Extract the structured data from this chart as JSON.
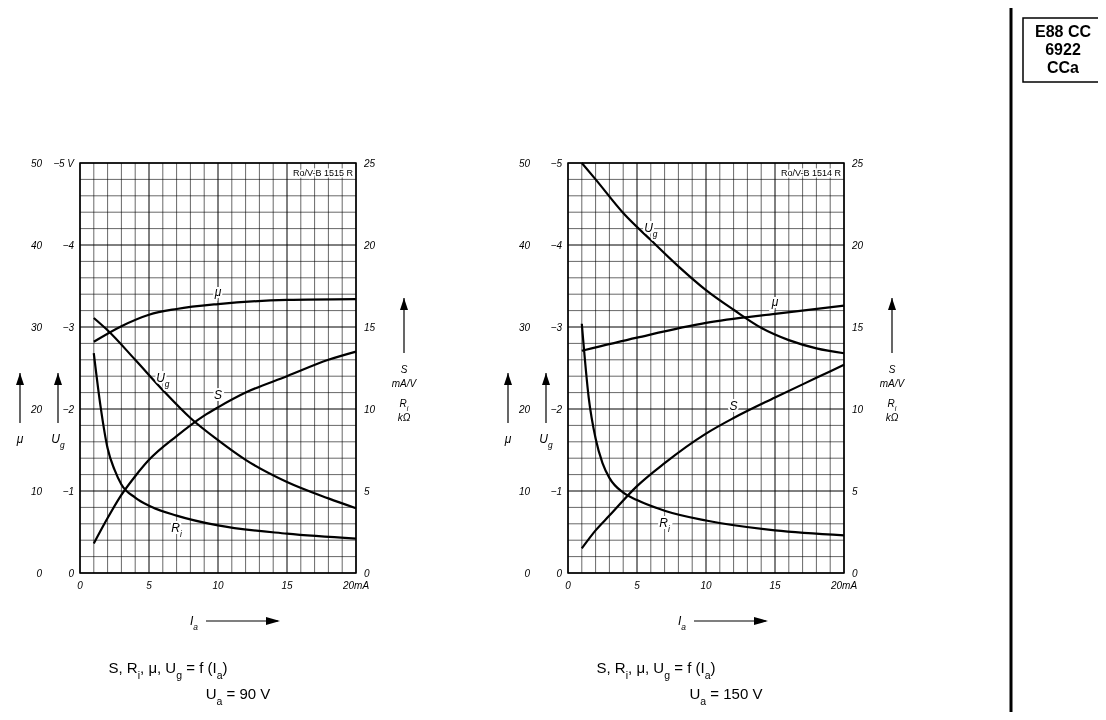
{
  "chart_data": [
    {
      "type": "line",
      "xlabel": "I$_{a}$",
      "ylabel": "μ",
      "y2label": "U$_{g}$",
      "y3label": "S\nmA/V\nR$_{i}$\nkΩ",
      "xlim": [
        0,
        20
      ],
      "ylim": [
        0,
        50
      ],
      "y2lim": [
        0,
        -5
      ],
      "y3lim": [
        0,
        25
      ],
      "xticks": [
        0,
        {
          "value": 1,
          "label": null
        },
        {
          "value": 2,
          "label": null
        },
        {
          "value": 3,
          "label": null
        },
        {
          "value": 4,
          "label": null
        },
        5,
        {
          "value": 6,
          "label": null
        },
        {
          "value": 7,
          "label": null
        },
        {
          "value": 8,
          "label": null
        },
        {
          "value": 9,
          "label": null
        },
        10,
        {
          "value": 11,
          "label": null
        },
        {
          "value": 12,
          "label": null
        },
        {
          "value": 13,
          "label": null
        },
        {
          "value": 14,
          "label": null
        },
        15,
        {
          "value": 16,
          "label": null
        },
        {
          "value": 17,
          "label": null
        },
        {
          "value": 18,
          "label": null
        },
        {
          "value": 19,
          "label": null
        },
        {
          "value": 20,
          "label": "20mA"
        }
      ],
      "yticks": [
        0,
        10,
        20,
        30,
        40,
        50
      ],
      "y2ticks": [
        0,
        {
          "value": -1,
          "label": "−1"
        },
        {
          "value": -2,
          "label": "−2"
        },
        {
          "value": -3,
          "label": "−3"
        },
        {
          "value": -4,
          "label": "−4"
        },
        {
          "value": -5,
          "label": "−5 V"
        }
      ],
      "y3ticks": [
        0,
        {
          "value": 1,
          "label": null
        },
        {
          "value": 2,
          "label": null
        },
        {
          "value": 3,
          "label": null
        },
        {
          "value": 4,
          "label": null
        },
        5,
        {
          "value": 6,
          "label": null
        },
        {
          "value": 7,
          "label": null
        },
        {
          "value": 8,
          "label": null
        },
        {
          "value": 9,
          "label": null
        },
        10,
        {
          "value": 11,
          "label": null
        },
        {
          "value": 12,
          "label": null
        },
        {
          "value": 13,
          "label": null
        },
        {
          "value": 14,
          "label": null
        },
        15,
        {
          "value": 16,
          "label": null
        },
        {
          "value": 17,
          "label": null
        },
        {
          "value": 18,
          "label": null
        },
        {
          "value": 19,
          "label": null
        },
        20,
        {
          "value": 21,
          "label": null
        },
        {
          "value": 22,
          "label": null
        },
        {
          "value": 23,
          "label": null
        },
        {
          "value": 24,
          "label": null
        },
        25
      ],
      "grid": true,
      "series": [
        {
          "name": "μ",
          "color": "#000000",
          "x": [
            1,
            3,
            5,
            7,
            10,
            15,
            20
          ],
          "values": [
            28.2,
            30.1,
            31.5,
            32.2,
            32.8,
            33.3,
            33.4
          ]
        },
        {
          "name": "U$_{g}$",
          "color": "#000000",
          "axis": "y2",
          "x": [
            1,
            2,
            4,
            6,
            8,
            10,
            12,
            15,
            18,
            20
          ],
          "values": [
            -3.11,
            -2.96,
            -2.6,
            -2.23,
            -1.89,
            -1.62,
            -1.38,
            -1.11,
            -0.91,
            -0.79
          ]
        },
        {
          "name": "S",
          "color": "#000000",
          "axis": "y3",
          "x": [
            1,
            2,
            3,
            4,
            5,
            7,
            9,
            10,
            12,
            15,
            18,
            20
          ],
          "values": [
            1.8,
            3.35,
            4.76,
            5.9,
            6.9,
            8.35,
            9.6,
            10.1,
            11,
            12,
            13,
            13.5
          ]
        },
        {
          "name": "R$_{i}$",
          "color": "#000000",
          "axis": "y3",
          "x": [
            1,
            1.5,
            2,
            2.5,
            3,
            4,
            5,
            7,
            10,
            15,
            20
          ],
          "values": [
            13.4,
            10.1,
            7.6,
            6.3,
            5.4,
            4.6,
            4.1,
            3.5,
            2.9,
            2.4,
            2.1
          ]
        }
      ],
      "annotations": [
        "S, R$_{i}$, μ, U$_{g}$ = f (I$_{a}$)",
        "U$_{a}$ = 90 V",
        "Ro/V-B 1515 R",
        "E88 CC",
        "6922",
        "CCa"
      ]
    },
    {
      "type": "line",
      "xlabel": "I$_{a}$",
      "ylabel": "μ",
      "y2label": "U$_{g}$",
      "y3label": "S\nmA/V\nR$_{i}$\nkΩ",
      "xlim": [
        0,
        20
      ],
      "ylim": [
        0,
        50
      ],
      "y2lim": [
        0,
        -5
      ],
      "y3lim": [
        0,
        25
      ],
      "xticks": [
        0,
        {
          "value": 1,
          "label": null
        },
        {
          "value": 2,
          "label": null
        },
        {
          "value": 3,
          "label": null
        },
        {
          "value": 4,
          "label": null
        },
        5,
        {
          "value": 6,
          "label": null
        },
        {
          "value": 7,
          "label": null
        },
        {
          "value": 8,
          "label": null
        },
        {
          "value": 9,
          "label": null
        },
        10,
        {
          "value": 11,
          "label": null
        },
        {
          "value": 12,
          "label": null
        },
        {
          "value": 13,
          "label": null
        },
        {
          "value": 14,
          "label": null
        },
        15,
        {
          "value": 16,
          "label": null
        },
        {
          "value": 17,
          "label": null
        },
        {
          "value": 18,
          "label": null
        },
        {
          "value": 19,
          "label": null
        },
        {
          "value": 20,
          "label": "20mA"
        }
      ],
      "yticks": [
        0,
        10,
        20,
        30,
        40,
        50
      ],
      "y2ticks": [
        0,
        {
          "value": -1,
          "label": "−1"
        },
        {
          "value": -2,
          "label": "−2"
        },
        {
          "value": -3,
          "label": "−3"
        },
        {
          "value": -4,
          "label": "−4"
        },
        {
          "value": -5,
          "label": "−5"
        }
      ],
      "y3ticks": [
        0,
        {
          "value": 1,
          "label": null
        },
        {
          "value": 2,
          "label": null
        },
        {
          "value": 3,
          "label": null
        },
        {
          "value": 4,
          "label": null
        },
        5,
        {
          "value": 6,
          "label": null
        },
        {
          "value": 7,
          "label": null
        },
        {
          "value": 8,
          "label": null
        },
        {
          "value": 9,
          "label": null
        },
        10,
        {
          "value": 11,
          "label": null
        },
        {
          "value": 12,
          "label": null
        },
        {
          "value": 13,
          "label": null
        },
        {
          "value": 14,
          "label": null
        },
        15,
        {
          "value": 16,
          "label": null
        },
        {
          "value": 17,
          "label": null
        },
        {
          "value": 18,
          "label": null
        },
        {
          "value": 19,
          "label": null
        },
        20,
        {
          "value": 21,
          "label": null
        },
        {
          "value": 22,
          "label": null
        },
        {
          "value": 23,
          "label": null
        },
        {
          "value": 24,
          "label": null
        },
        25
      ],
      "grid": true,
      "series": [
        {
          "name": "μ",
          "color": "#000000",
          "x": [
            1,
            5,
            10,
            15,
            20
          ],
          "values": [
            27.1,
            28.7,
            30.5,
            31.6,
            32.6
          ]
        },
        {
          "name": "U$_{g}$",
          "color": "#000000",
          "axis": "y2",
          "x": [
            1,
            2,
            4,
            6,
            8,
            10,
            12,
            14,
            16,
            18,
            20
          ],
          "values": [
            -5,
            -4.8,
            -4.39,
            -4.06,
            -3.74,
            -3.45,
            -3.21,
            -2.99,
            -2.84,
            -2.74,
            -2.68
          ]
        },
        {
          "name": "S",
          "color": "#000000",
          "axis": "y3",
          "x": [
            1,
            2,
            3,
            5,
            7,
            10,
            12,
            15,
            18,
            20
          ],
          "values": [
            1.5,
            2.6,
            3.5,
            5.3,
            6.7,
            8.5,
            9.45,
            10.7,
            11.9,
            12.7
          ]
        },
        {
          "name": "R$_{i}$",
          "color": "#000000",
          "axis": "y3",
          "x": [
            1,
            1.5,
            2,
            2.5,
            3,
            4,
            5,
            7,
            10,
            15,
            20
          ],
          "values": [
            15.2,
            10.7,
            8.2,
            6.7,
            5.8,
            4.9,
            4.45,
            3.8,
            3.2,
            2.6,
            2.3
          ]
        }
      ],
      "annotations": [
        "S, R$_{i}$, μ, U$_{g}$ = f (I$_{a}$)",
        "U$_{a}$ = 150 V",
        "Ro/V-B 1514 R"
      ]
    }
  ]
}
